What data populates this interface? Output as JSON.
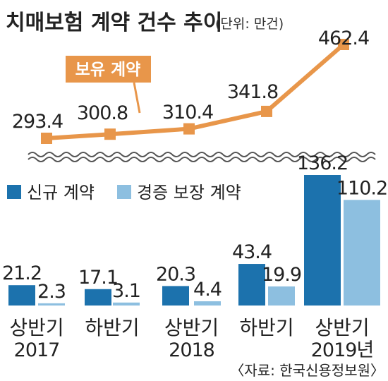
{
  "chart_data": [
    {
      "type": "line",
      "title": "치매보험 계약 건수 추이",
      "unit": "(단위: 만건)",
      "series": [
        {
          "name": "보유 계약",
          "values": [
            293.4,
            300.8,
            310.4,
            341.8,
            462.4
          ]
        }
      ],
      "value_labels": [
        "293.4",
        "300.8",
        "310.4",
        "341.8",
        "462.4"
      ],
      "y_axis_break": true,
      "colors": {
        "line": "#e8964a",
        "marker": "#e8964a",
        "badge": "#e8964a"
      }
    },
    {
      "type": "bar",
      "categories": [
        "상반기",
        "하반기",
        "상반기",
        "하반기",
        "상반기"
      ],
      "category_years": [
        "2017",
        "",
        "2018",
        "",
        "2019년"
      ],
      "series": [
        {
          "name": "신규 계약",
          "values": [
            21.2,
            17.1,
            20.3,
            43.4,
            136.2
          ]
        },
        {
          "name": "경증 보장 계약",
          "values": [
            2.3,
            3.1,
            4.4,
            19.9,
            110.2
          ]
        }
      ],
      "value_labels": [
        [
          "21.2",
          "17.1",
          "20.3",
          "43.4",
          "136.2"
        ],
        [
          "2.3",
          "3.1",
          "4.4",
          "19.9",
          "110.2"
        ]
      ],
      "colors": {
        "new": "#1c72ad",
        "mild": "#8dbfe0"
      },
      "source": "〈자료: 한국신용정보원〉"
    }
  ]
}
